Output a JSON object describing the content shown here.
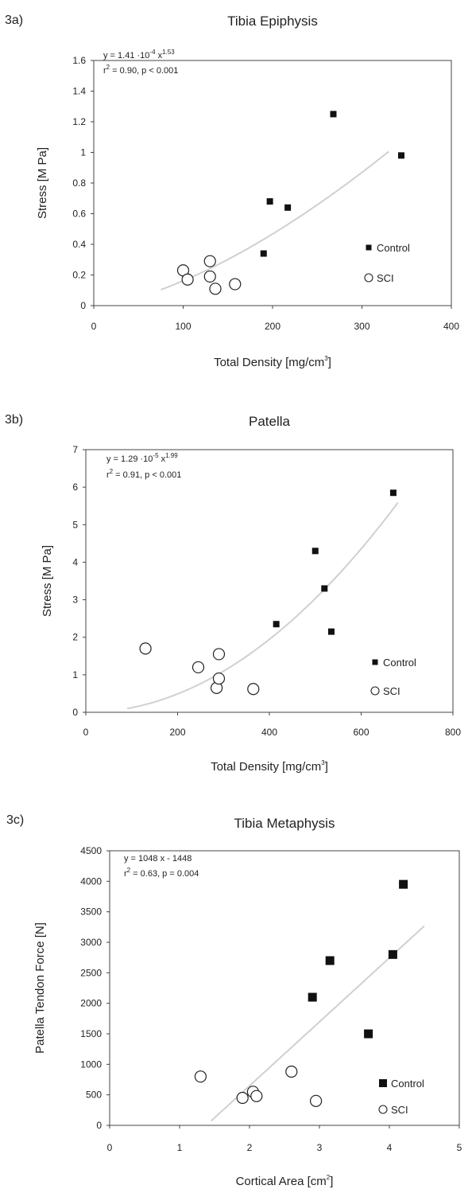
{
  "chart_data": [
    {
      "type": "scatter",
      "panel": "3a)",
      "title": "Tibia Epiphysis",
      "xlabel": "Total Density [mg/cm",
      "xlabel_sup": "3",
      "xlabel_end": "]",
      "ylabel": "Stress [M Pa]",
      "xlim": [
        0,
        400
      ],
      "ylim": [
        0,
        1.6
      ],
      "xticks": [
        0,
        100,
        200,
        300,
        400
      ],
      "xtick_labels": [
        "0",
        "100",
        "200",
        "300",
        "400"
      ],
      "yticks": [
        0,
        0.2,
        0.4,
        0.6,
        0.8,
        1.0,
        1.2,
        1.4,
        1.6
      ],
      "ytick_labels": [
        "0",
        "0.2",
        "0.4",
        "0.6",
        "0.8",
        "1",
        "1.2",
        "1.4",
        "1.6"
      ],
      "equation_line1": "y = 1.41 ·10",
      "equation_line1_sup1": "-4",
      "equation_line1_mid": " x",
      "equation_line1_sup2": "1.53",
      "equation_line2_pre": "r",
      "equation_line2_sup": "2",
      "equation_line2": " = 0.90, p < 0.001",
      "legend_position": "bottom-right",
      "series": [
        {
          "name": "Control",
          "marker": "filled-square",
          "x": [
            190,
            197,
            217,
            268,
            344
          ],
          "y": [
            0.34,
            0.68,
            0.64,
            1.25,
            0.98
          ]
        },
        {
          "name": "SCI",
          "marker": "open-circle",
          "x": [
            100,
            105,
            130,
            130,
            136,
            158
          ],
          "y": [
            0.23,
            0.17,
            0.29,
            0.19,
            0.11,
            0.14
          ]
        }
      ],
      "fit": {
        "kind": "power",
        "a": 0.000141,
        "b": 1.53,
        "x_range": [
          75,
          330
        ]
      }
    },
    {
      "type": "scatter",
      "panel": "3b)",
      "title": "Patella",
      "xlabel": "Total Density [mg/cm",
      "xlabel_sup": "3",
      "xlabel_end": "]",
      "ylabel": "Stress [M Pa]",
      "xlim": [
        0,
        800
      ],
      "ylim": [
        0,
        7
      ],
      "xticks": [
        0,
        200,
        400,
        600,
        800
      ],
      "xtick_labels": [
        "0",
        "200",
        "400",
        "600",
        "800"
      ],
      "yticks": [
        0,
        1,
        2,
        3,
        4,
        5,
        6,
        7
      ],
      "ytick_labels": [
        "0",
        "1",
        "2",
        "3",
        "4",
        "5",
        "6",
        "7"
      ],
      "equation_line1": "y = 1.29 ·10",
      "equation_line1_sup1": "-5",
      "equation_line1_mid": " x",
      "equation_line1_sup2": "1.99",
      "equation_line2_pre": "r",
      "equation_line2_sup": "2",
      "equation_line2": " = 0.91, p < 0.001",
      "legend_position": "bottom-right",
      "series": [
        {
          "name": "Control",
          "marker": "filled-square",
          "x": [
            415,
            500,
            520,
            535,
            670
          ],
          "y": [
            2.35,
            4.3,
            3.3,
            2.15,
            5.85
          ]
        },
        {
          "name": "SCI",
          "marker": "open-circle",
          "x": [
            130,
            245,
            285,
            290,
            290,
            365
          ],
          "y": [
            1.7,
            1.2,
            0.65,
            0.9,
            1.55,
            0.62
          ]
        }
      ],
      "fit": {
        "kind": "power",
        "a": 1.29e-05,
        "b": 1.99,
        "x_range": [
          90,
          680
        ]
      }
    },
    {
      "type": "scatter",
      "panel": "3c)",
      "title": "Tibia Metaphysis",
      "xlabel": "Cortical Area [cm",
      "xlabel_sup": "2",
      "xlabel_end": "]",
      "ylabel": "Patella Tendon Force [N]",
      "xlim": [
        0,
        5
      ],
      "ylim": [
        0,
        4500
      ],
      "xticks": [
        0,
        1,
        2,
        3,
        4,
        5
      ],
      "xtick_labels": [
        "0",
        "1",
        "2",
        "3",
        "4",
        "5"
      ],
      "yticks": [
        0,
        500,
        1000,
        1500,
        2000,
        2500,
        3000,
        3500,
        4000,
        4500
      ],
      "ytick_labels": [
        "0",
        "500",
        "1000",
        "1500",
        "2000",
        "2500",
        "3000",
        "3500",
        "4000",
        "4500"
      ],
      "equation_line1": "y = 1048 x - 1448",
      "equation_line1_sup1": "",
      "equation_line1_mid": "",
      "equation_line1_sup2": "",
      "equation_line2_pre": "r",
      "equation_line2_sup": "2",
      "equation_line2": " = 0.63, p = 0.004",
      "legend_position": "bottom-right",
      "series": [
        {
          "name": "Control",
          "marker": "filled-square",
          "x": [
            2.9,
            3.15,
            3.7,
            4.05,
            4.2
          ],
          "y": [
            2100,
            2700,
            1500,
            2800,
            3950
          ]
        },
        {
          "name": "SCI",
          "marker": "open-circle",
          "x": [
            1.3,
            1.9,
            2.05,
            2.1,
            2.6,
            2.95
          ],
          "y": [
            800,
            450,
            550,
            480,
            880,
            400
          ]
        }
      ],
      "fit": {
        "kind": "linear",
        "a": 1048,
        "b": -1448,
        "x_range": [
          1.45,
          4.5
        ]
      }
    }
  ]
}
